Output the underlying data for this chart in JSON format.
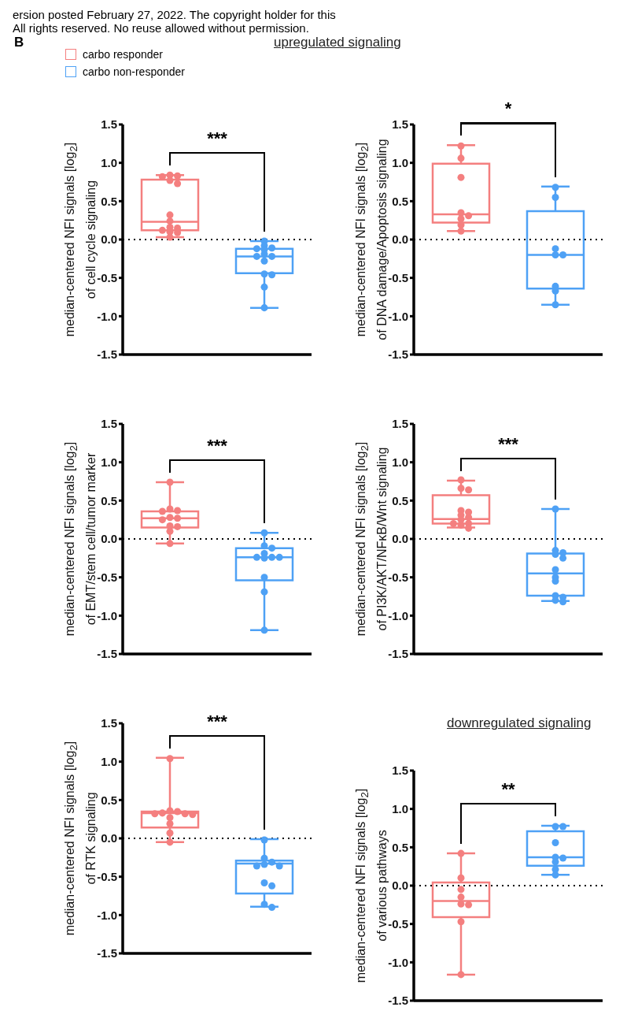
{
  "chart_data": [
    {
      "type": "box",
      "title": "upregulated signaling",
      "annotations": [
        "***",
        "ersion posted February 27, 2022. The copyright holder for this",
        "All rights reserved. No reuse allowed without permission.",
        "B"
      ],
      "ylabel": "median-centered NFI signals [log$_{2}$]\nof cell cycle signaling",
      "categories": [
        null,
        null
      ],
      "tick_labels": "y",
      "legend": "top left",
      "ylim": [
        -1.5,
        1.5
      ],
      "yticks": [
        {
          "value": -1.5,
          "label": "-1.5"
        },
        {
          "value": -1,
          "label": "-1.0"
        },
        {
          "value": -0.5,
          "label": "-0.5"
        },
        {
          "value": 0,
          "label": "0.0"
        },
        {
          "value": 0.5,
          "label": "0.5"
        },
        {
          "value": 1,
          "label": "1.0"
        },
        {
          "value": 1.5,
          "label": "1.5"
        }
      ],
      "ref_lines": [
        {
          "axis": "y",
          "value": 0,
          "line_style": "dotted",
          "color": "#000000"
        }
      ],
      "marker": "circle",
      "series": [
        {
          "name": "carbo responder",
          "color": "#f47f7f",
          "type": "box",
          "boxes": [
            {
              "low": 0.03,
              "q1": 0.12,
              "median": 0.23,
              "q3": 0.78,
              "high": 0.84,
              "outliers": [
                0.84,
                0.83,
                0.82,
                0.77,
                0.73,
                0.32,
                0.24,
                0.16,
                0.15,
                0.12,
                0.1,
                0.09,
                0.03
              ]
            },
            null
          ]
        },
        {
          "name": "carbo non-responder",
          "color": "#4ea1f5",
          "type": "box",
          "boxes": [
            null,
            {
              "low": -0.89,
              "q1": -0.44,
              "median": -0.22,
              "q3": -0.12,
              "high": -0.02,
              "outliers": [
                -0.02,
                -0.08,
                -0.11,
                -0.12,
                -0.13,
                -0.19,
                -0.22,
                -0.22,
                -0.28,
                -0.45,
                -0.46,
                -0.62,
                -0.89
              ]
            }
          ]
        }
      ]
    },
    {
      "type": "box",
      "annotations": [
        "*"
      ],
      "ylabel": "median-centered NFI signals [log$_{2}$]\nof DNA damage/Apoptosis signaling",
      "categories": [
        null,
        null
      ],
      "tick_labels": "y",
      "ylim": [
        -1.5,
        1.5
      ],
      "yticks": [
        {
          "value": -1.5,
          "label": "-1.5"
        },
        {
          "value": -1,
          "label": "-1.0"
        },
        {
          "value": -0.5,
          "label": "-0.5"
        },
        {
          "value": 0,
          "label": "0.0"
        },
        {
          "value": 0.5,
          "label": "0.5"
        },
        {
          "value": 1,
          "label": "1.0"
        },
        {
          "value": 1.5,
          "label": "1.5"
        }
      ],
      "ref_lines": [
        {
          "axis": "y",
          "value": 0,
          "line_style": "dotted",
          "color": "#000000"
        }
      ],
      "marker": "circle",
      "series": [
        {
          "color": "#f47f7f",
          "type": "box",
          "boxes": [
            {
              "low": 0.11,
              "q1": 0.22,
              "median": 0.33,
              "q3": 0.99,
              "high": 1.23,
              "outliers": [
                1.22,
                1.06,
                0.81,
                0.35,
                0.31,
                0.27,
                0.19,
                0.11
              ]
            },
            null
          ]
        },
        {
          "color": "#4ea1f5",
          "type": "box",
          "boxes": [
            null,
            {
              "low": -0.85,
              "q1": -0.64,
              "median": -0.2,
              "q3": 0.37,
              "high": 0.69,
              "outliers": [
                0.68,
                0.55,
                -0.12,
                -0.2,
                -0.2,
                -0.61,
                -0.67,
                -0.85
              ]
            }
          ]
        }
      ]
    },
    {
      "type": "box",
      "annotations": [
        "***"
      ],
      "ylabel": "median-centered NFI signals [log$_{2}$]\nof EMT/stem cell/tumor marker",
      "categories": [
        null,
        null
      ],
      "tick_labels": "y",
      "ylim": [
        -1.5,
        1.5
      ],
      "yticks": [
        {
          "value": -1.5,
          "label": "-1.5"
        },
        {
          "value": -1,
          "label": "-1.0"
        },
        {
          "value": -0.5,
          "label": "-0.5"
        },
        {
          "value": 0,
          "label": "0.0"
        },
        {
          "value": 0.5,
          "label": "0.5"
        },
        {
          "value": 1,
          "label": "1.0"
        },
        {
          "value": 1.5,
          "label": "1.5"
        }
      ],
      "ref_lines": [
        {
          "axis": "y",
          "value": 0,
          "line_style": "dotted",
          "color": "#000000"
        }
      ],
      "marker": "circle",
      "series": [
        {
          "color": "#f47f7f",
          "type": "box",
          "boxes": [
            {
              "low": -0.06,
              "q1": 0.15,
              "median": 0.27,
              "q3": 0.36,
              "high": 0.74,
              "outliers": [
                0.74,
                0.39,
                0.37,
                0.36,
                0.28,
                0.27,
                0.25,
                0.17,
                0.16,
                0.1,
                -0.06
              ]
            },
            null
          ]
        },
        {
          "color": "#4ea1f5",
          "type": "box",
          "boxes": [
            null,
            {
              "low": -1.19,
              "q1": -0.54,
              "median": -0.24,
              "q3": -0.12,
              "high": 0.08,
              "outliers": [
                0.08,
                -0.09,
                -0.12,
                -0.19,
                -0.24,
                -0.24,
                -0.24,
                -0.25,
                -0.5,
                -0.69,
                -1.19
              ]
            }
          ]
        }
      ]
    },
    {
      "type": "box",
      "annotations": [
        "***"
      ],
      "ylabel": "median-centered NFI signals [log$_{2}$]\nof PI3K/AKT/NFκB/Wnt signaling",
      "categories": [
        null,
        null
      ],
      "tick_labels": "y",
      "ylim": [
        -1.5,
        1.5
      ],
      "yticks": [
        {
          "value": -1.5,
          "label": "-1.5"
        },
        {
          "value": -1,
          "label": "-1.0"
        },
        {
          "value": -0.5,
          "label": "-0.5"
        },
        {
          "value": 0,
          "label": "0.0"
        },
        {
          "value": 0.5,
          "label": "0.5"
        },
        {
          "value": 1,
          "label": "1.0"
        },
        {
          "value": 1.5,
          "label": "1.5"
        }
      ],
      "ref_lines": [
        {
          "axis": "y",
          "value": 0,
          "line_style": "dotted",
          "color": "#000000"
        }
      ],
      "marker": "circle",
      "series": [
        {
          "color": "#f47f7f",
          "type": "box",
          "boxes": [
            {
              "low": 0.15,
              "q1": 0.2,
              "median": 0.26,
              "q3": 0.57,
              "high": 0.76,
              "outliers": [
                0.77,
                0.66,
                0.64,
                0.37,
                0.35,
                0.31,
                0.28,
                0.25,
                0.2,
                0.2,
                0.18,
                0.14
              ]
            },
            null
          ]
        },
        {
          "color": "#4ea1f5",
          "type": "box",
          "boxes": [
            null,
            {
              "low": -0.81,
              "q1": -0.74,
              "median": -0.45,
              "q3": -0.19,
              "high": 0.39,
              "outliers": [
                0.39,
                -0.15,
                -0.18,
                -0.2,
                -0.25,
                -0.4,
                -0.5,
                -0.55,
                -0.74,
                -0.76,
                -0.8,
                -0.82
              ]
            }
          ]
        }
      ]
    },
    {
      "type": "box",
      "annotations": [
        "***"
      ],
      "ylabel": "median-centered NFI signals [log$_{2}$]\nof RTK signaling",
      "categories": [
        null,
        null
      ],
      "tick_labels": "y",
      "ylim": [
        -1.5,
        1.5
      ],
      "yticks": [
        {
          "value": -1.5,
          "label": "-1.5"
        },
        {
          "value": -1,
          "label": "-1.0"
        },
        {
          "value": -0.5,
          "label": "-0.5"
        },
        {
          "value": 0,
          "label": "0.0"
        },
        {
          "value": 0.5,
          "label": "0.5"
        },
        {
          "value": 1,
          "label": "1.0"
        },
        {
          "value": 1.5,
          "label": "1.5"
        }
      ],
      "ref_lines": [
        {
          "axis": "y",
          "value": 0,
          "line_style": "dotted",
          "color": "#000000"
        }
      ],
      "marker": "circle",
      "series": [
        {
          "color": "#f47f7f",
          "type": "box",
          "boxes": [
            {
              "low": -0.05,
              "q1": 0.14,
              "median": 0.33,
              "q3": 0.35,
              "high": 1.05,
              "outliers": [
                1.04,
                0.36,
                0.35,
                0.33,
                0.32,
                0.32,
                0.31,
                0.27,
                0.19,
                0.07,
                -0.05
              ]
            },
            null
          ]
        },
        {
          "color": "#4ea1f5",
          "type": "box",
          "boxes": [
            null,
            {
              "low": -0.89,
              "q1": -0.72,
              "median": -0.33,
              "q3": -0.29,
              "high": -0.01,
              "outliers": [
                -0.02,
                -0.26,
                -0.31,
                -0.34,
                -0.36,
                -0.36,
                -0.58,
                -0.62,
                -0.86,
                -0.9
              ]
            }
          ]
        }
      ]
    },
    {
      "type": "box",
      "title": "downregulated signaling",
      "annotations": [
        "**"
      ],
      "ylabel": "median-centered NFI signals [log$_{2}$]\nof various pathways",
      "categories": [
        null,
        null
      ],
      "tick_labels": "y",
      "ylim": [
        -1.5,
        1.5
      ],
      "yticks": [
        {
          "value": -1.5,
          "label": "-1.5"
        },
        {
          "value": -1,
          "label": "-1.0"
        },
        {
          "value": -0.5,
          "label": "-0.5"
        },
        {
          "value": 0,
          "label": "0.0"
        },
        {
          "value": 0.5,
          "label": "0.5"
        },
        {
          "value": 1,
          "label": "1.0"
        },
        {
          "value": 1.5,
          "label": "1.5"
        }
      ],
      "ref_lines": [
        {
          "axis": "y",
          "value": 0,
          "line_style": "dotted",
          "color": "#000000"
        }
      ],
      "marker": "circle",
      "series": [
        {
          "color": "#f47f7f",
          "type": "box",
          "boxes": [
            {
              "low": -1.16,
              "q1": -0.41,
              "median": -0.2,
              "q3": 0.04,
              "high": 0.42,
              "outliers": [
                0.42,
                0.1,
                -0.05,
                -0.15,
                -0.24,
                -0.25,
                -0.47,
                -1.16
              ]
            },
            null
          ]
        },
        {
          "color": "#4ea1f5",
          "type": "box",
          "boxes": [
            null,
            {
              "low": 0.14,
              "q1": 0.26,
              "median": 0.37,
              "q3": 0.71,
              "high": 0.78,
              "outliers": [
                0.77,
                0.77,
                0.56,
                0.37,
                0.36,
                0.31,
                0.21,
                0.14
              ]
            }
          ]
        }
      ]
    }
  ]
}
